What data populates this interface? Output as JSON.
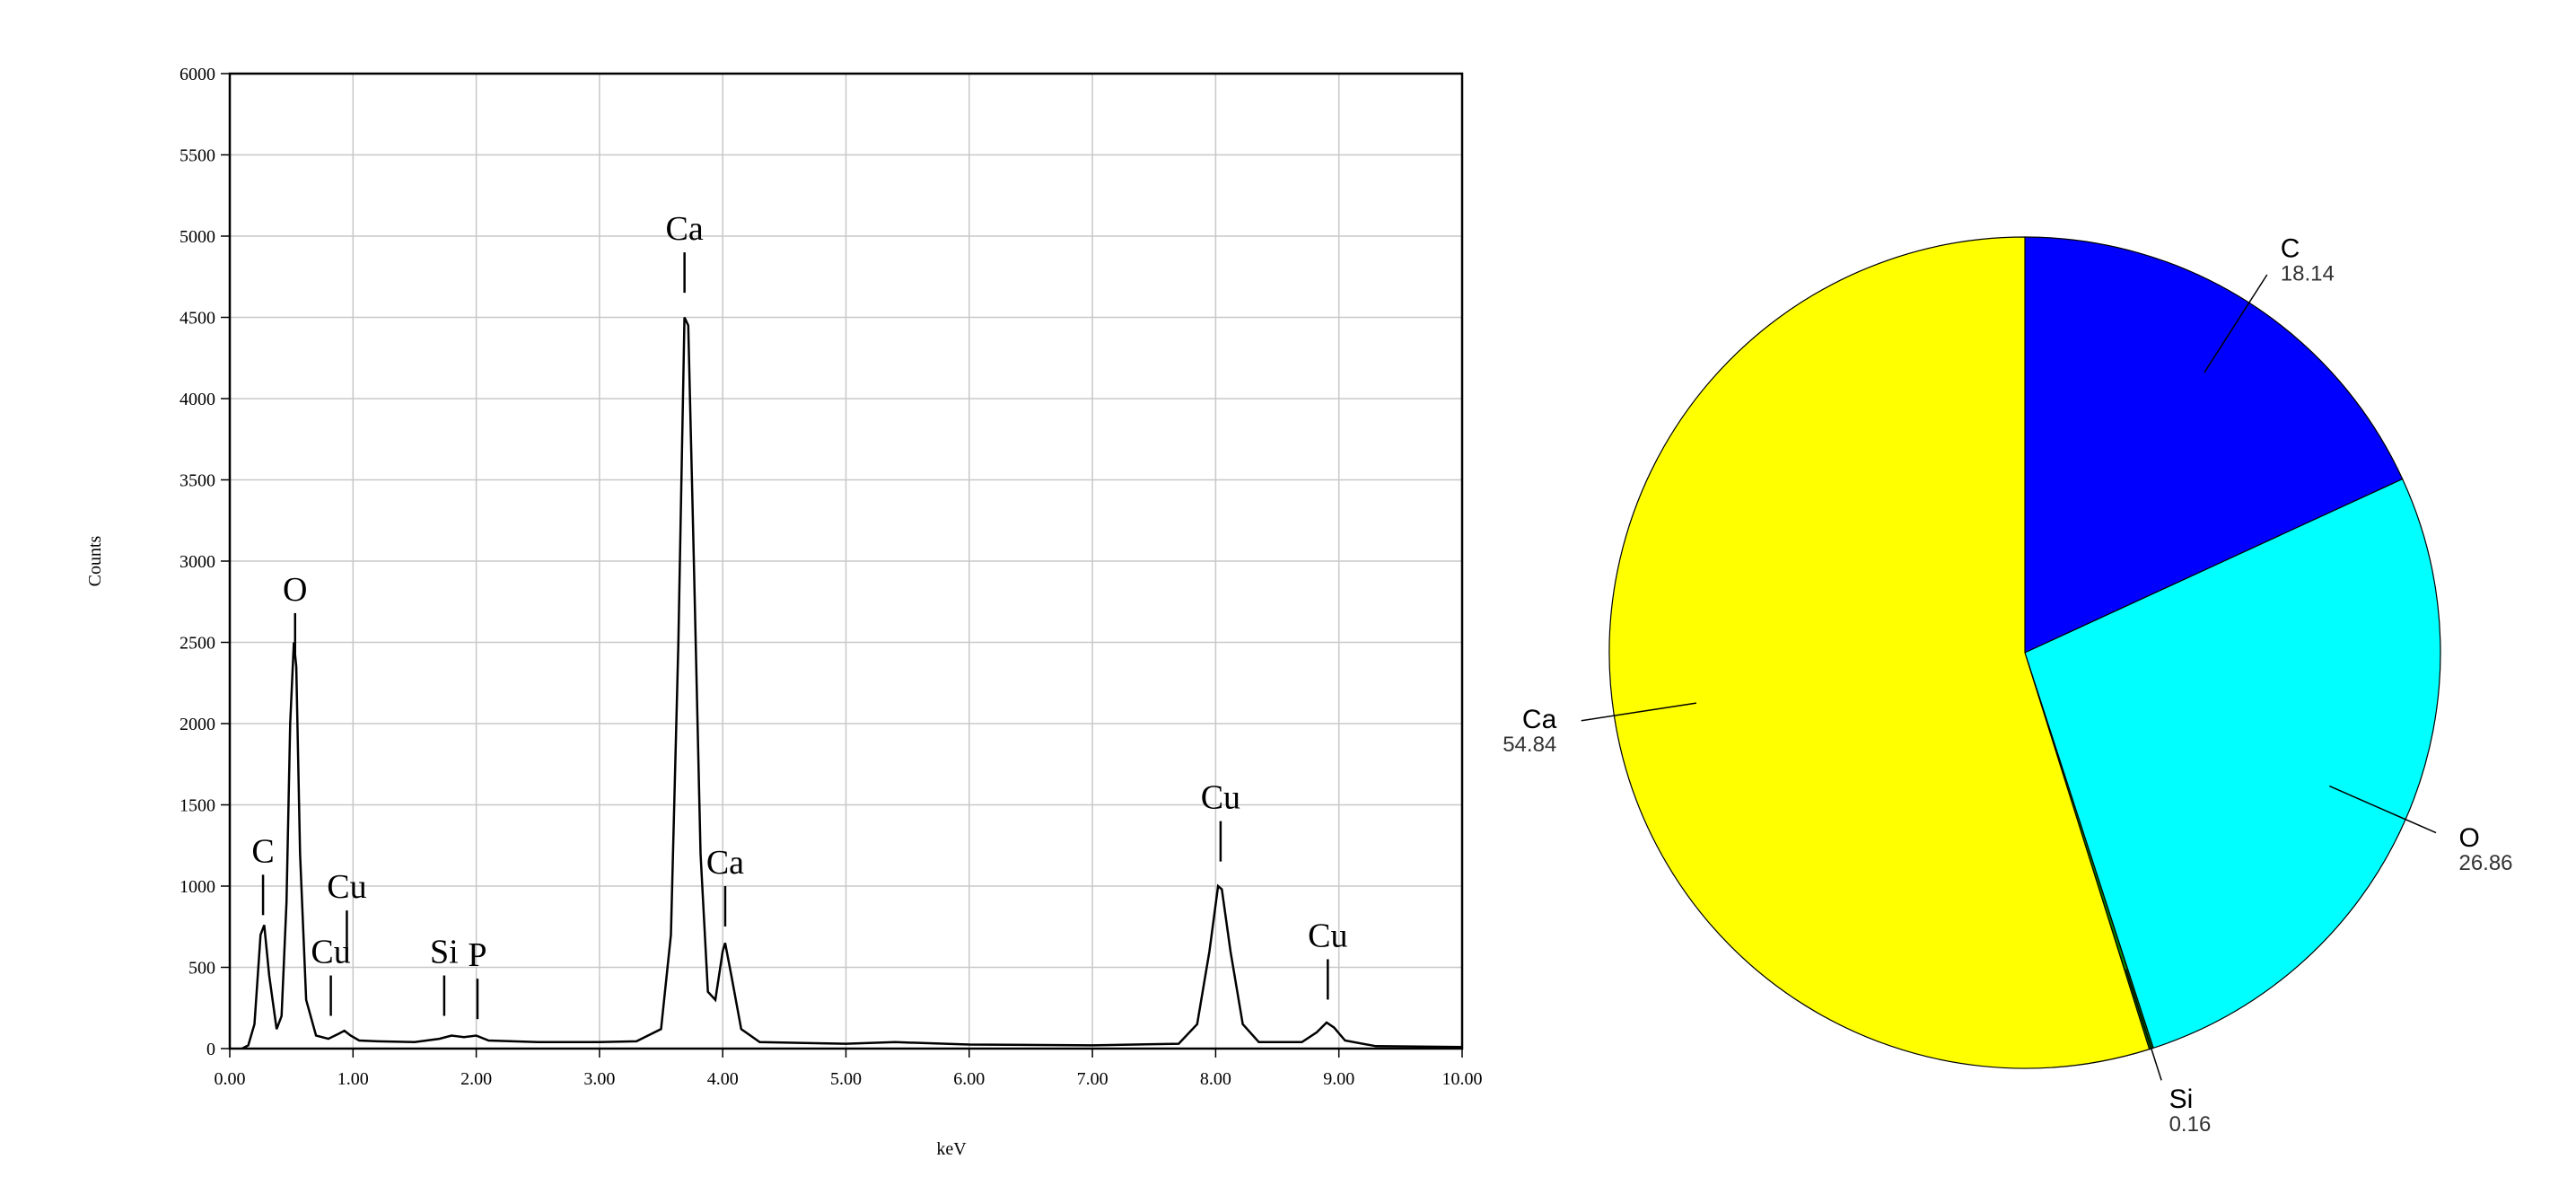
{
  "chart_data": [
    {
      "type": "line",
      "xlabel": "keV",
      "ylabel": "Counts",
      "color": "#000000",
      "grid": true,
      "xlim": [
        0,
        10
      ],
      "ylim": [
        0,
        6000
      ],
      "xticks": [
        {
          "value": 0,
          "label": "0.00"
        },
        {
          "value": 1,
          "label": "1.00"
        },
        {
          "value": 2,
          "label": "2.00"
        },
        {
          "value": 3,
          "label": "3.00"
        },
        {
          "value": 4,
          "label": "4.00"
        },
        {
          "value": 5,
          "label": "5.00"
        },
        {
          "value": 6,
          "label": "6.00"
        },
        {
          "value": 7,
          "label": "7.00"
        },
        {
          "value": 8,
          "label": "8.00"
        },
        {
          "value": 9,
          "label": "9.00"
        },
        {
          "value": 10,
          "label": "10.00"
        }
      ],
      "yticks": [
        0,
        500,
        1000,
        1500,
        2000,
        2500,
        3000,
        3500,
        4000,
        4500,
        5000,
        5500,
        6000
      ],
      "x": [
        0.1,
        0.15,
        0.2,
        0.25,
        0.28,
        0.32,
        0.38,
        0.42,
        0.46,
        0.49,
        0.52,
        0.54,
        0.57,
        0.62,
        0.7,
        0.8,
        0.88,
        0.93,
        0.98,
        1.05,
        1.2,
        1.5,
        1.7,
        1.8,
        1.9,
        2.0,
        2.1,
        2.5,
        3.0,
        3.3,
        3.5,
        3.58,
        3.64,
        3.69,
        3.72,
        3.76,
        3.82,
        3.88,
        3.94,
        4.0,
        4.02,
        4.07,
        4.15,
        4.3,
        5.0,
        5.4,
        6.0,
        7.0,
        7.7,
        7.85,
        7.95,
        8.02,
        8.05,
        8.12,
        8.22,
        8.35,
        8.7,
        8.82,
        8.9,
        8.96,
        9.05,
        9.3,
        10.0
      ],
      "values": [
        0,
        20,
        150,
        700,
        760,
        450,
        120,
        200,
        900,
        2000,
        2500,
        2350,
        1200,
        300,
        80,
        60,
        90,
        110,
        80,
        50,
        45,
        40,
        60,
        80,
        70,
        80,
        50,
        40,
        40,
        45,
        120,
        700,
        2500,
        4500,
        4450,
        3200,
        1200,
        350,
        300,
        600,
        650,
        450,
        120,
        40,
        30,
        40,
        25,
        20,
        30,
        150,
        600,
        1000,
        980,
        600,
        150,
        40,
        40,
        100,
        160,
        130,
        50,
        15,
        10
      ],
      "annotations": [
        {
          "label": "C",
          "x": 0.27,
          "y": 1070
        },
        {
          "label": "O",
          "x": 0.53,
          "y": 2680
        },
        {
          "label": "Cu",
          "x": 0.82,
          "y": 450
        },
        {
          "label": "Cu",
          "x": 0.95,
          "y": 850
        },
        {
          "label": "Si",
          "x": 1.74,
          "y": 450
        },
        {
          "label": "P",
          "x": 2.01,
          "y": 430
        },
        {
          "label": "Ca",
          "x": 3.69,
          "y": 4900
        },
        {
          "label": "Ca",
          "x": 4.02,
          "y": 1000
        },
        {
          "label": "Cu",
          "x": 8.04,
          "y": 1400
        },
        {
          "label": "Cu",
          "x": 8.91,
          "y": 550
        }
      ]
    },
    {
      "type": "pie",
      "categories": [
        "C",
        "O",
        "Si",
        "Ca"
      ],
      "values": [
        18.14,
        26.86,
        0.16,
        54.84
      ],
      "colors": [
        "#0000ff",
        "#00ffff",
        "#008000",
        "#ffff00"
      ]
    }
  ]
}
